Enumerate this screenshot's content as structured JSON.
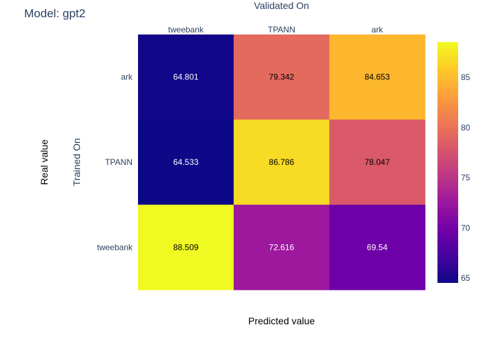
{
  "chart_data": {
    "type": "heatmap",
    "title": "Model: gpt2",
    "top_axis_title": "Validated On",
    "x_axis_title": "Predicted value",
    "y_axis_outer_title": "Real value",
    "y_axis_inner_title": "Trained On",
    "columns": [
      "tweebank",
      "TPANN",
      "ark"
    ],
    "rows": [
      "ark",
      "TPANN",
      "tweebank"
    ],
    "values": [
      [
        64.801,
        79.342,
        84.653
      ],
      [
        64.533,
        86.786,
        78.047
      ],
      [
        88.509,
        72.616,
        69.54
      ]
    ],
    "labels": [
      [
        "64.801",
        "79.342",
        "84.653"
      ],
      [
        "64.533",
        "86.786",
        "78.047"
      ],
      [
        "88.509",
        "72.616",
        "69.54"
      ]
    ],
    "colorscale": "plasma",
    "colorbar": {
      "ticks": [
        65,
        70,
        75,
        80,
        85
      ],
      "tick_labels": [
        "65",
        "70",
        "75",
        "80",
        "85"
      ]
    },
    "grid": false
  }
}
